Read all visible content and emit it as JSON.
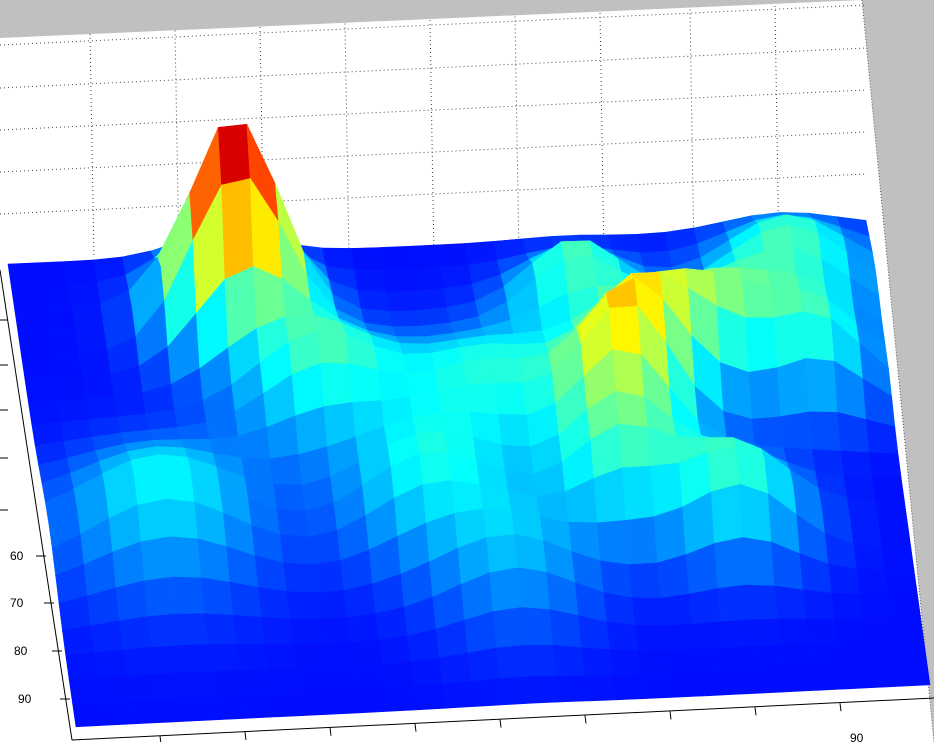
{
  "chart_data": {
    "type": "surface",
    "colormap": "jet",
    "grid": true,
    "background": "#c0c0c0",
    "axes_background": "#ffffff",
    "y_tick_labels": [
      "60",
      "70",
      "80",
      "90"
    ],
    "x_tick_labels": [
      "90"
    ],
    "surface_grid": {
      "columns": 30,
      "rows": 20,
      "peaks": [
        {
          "col": 7.5,
          "row": 3.0,
          "height": 1.0,
          "width": 1.6
        },
        {
          "col": 10.0,
          "row": 7.0,
          "height": 0.35,
          "width": 2.0
        },
        {
          "col": 16.0,
          "row": 8.0,
          "height": 0.3,
          "width": 2.5
        },
        {
          "col": 19.5,
          "row": 3.5,
          "height": 0.35,
          "width": 1.6
        },
        {
          "col": 20.5,
          "row": 9.0,
          "height": 0.45,
          "width": 1.5
        },
        {
          "col": 21.5,
          "row": 7.0,
          "height": 0.35,
          "width": 1.5
        },
        {
          "col": 24.0,
          "row": 6.0,
          "height": 0.35,
          "width": 1.6
        },
        {
          "col": 27.0,
          "row": 3.0,
          "height": 0.35,
          "width": 2.0
        },
        {
          "col": 27.5,
          "row": 7.0,
          "height": 0.3,
          "width": 1.5
        },
        {
          "col": 24.0,
          "row": 13.0,
          "height": 0.35,
          "width": 1.8
        },
        {
          "col": 13.0,
          "row": 12.0,
          "height": 0.25,
          "width": 2.0
        },
        {
          "col": 4.0,
          "row": 12.0,
          "height": 0.28,
          "width": 2.5
        },
        {
          "col": 20.0,
          "row": 12.0,
          "height": 0.3,
          "width": 1.6
        },
        {
          "col": 16.0,
          "row": 15.0,
          "height": 0.2,
          "width": 2.0
        }
      ]
    }
  }
}
